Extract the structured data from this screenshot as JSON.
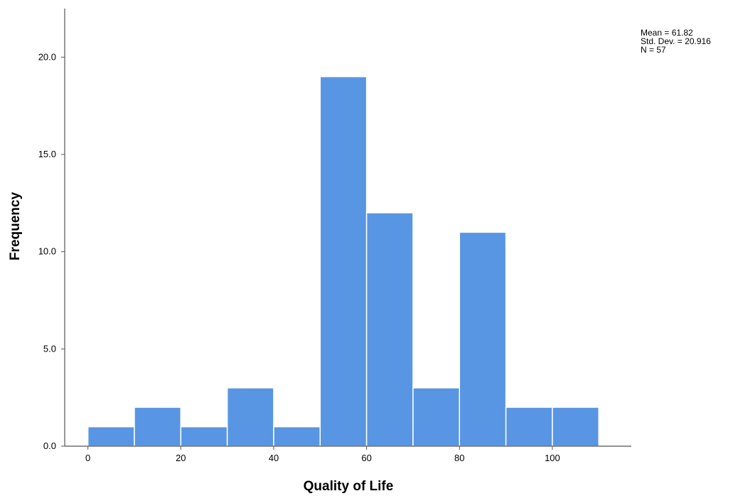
{
  "chart_data": {
    "type": "bar",
    "subtype": "histogram",
    "xlabel": "Quality of Life",
    "ylabel": "Frequency",
    "bin_width": 10,
    "bins": [
      {
        "start": 0,
        "end": 10,
        "count": 1
      },
      {
        "start": 10,
        "end": 20,
        "count": 2
      },
      {
        "start": 20,
        "end": 30,
        "count": 1
      },
      {
        "start": 30,
        "end": 40,
        "count": 3
      },
      {
        "start": 40,
        "end": 50,
        "count": 1
      },
      {
        "start": 50,
        "end": 60,
        "count": 19
      },
      {
        "start": 60,
        "end": 70,
        "count": 12
      },
      {
        "start": 70,
        "end": 80,
        "count": 3
      },
      {
        "start": 80,
        "end": 90,
        "count": 11
      },
      {
        "start": 90,
        "end": 100,
        "count": 2
      },
      {
        "start": 100,
        "end": 110,
        "count": 2
      }
    ],
    "xlim": [
      -5,
      117
    ],
    "ylim": [
      0,
      22.5
    ],
    "x_ticks": [
      0,
      20,
      40,
      60,
      80,
      100
    ],
    "x_tick_labels": [
      "0",
      "20",
      "40",
      "60",
      "80",
      "100"
    ],
    "y_ticks": [
      0,
      5,
      10,
      15,
      20
    ],
    "y_tick_labels": [
      "0.0",
      "5.0",
      "10.0",
      "15.0",
      "20.0"
    ],
    "bar_color": "#5896e3",
    "grid": false,
    "stats": {
      "mean_label": "Mean = 61.82",
      "sd_label": "Std. Dev. = 20.916",
      "n_label": "N = 57"
    }
  }
}
